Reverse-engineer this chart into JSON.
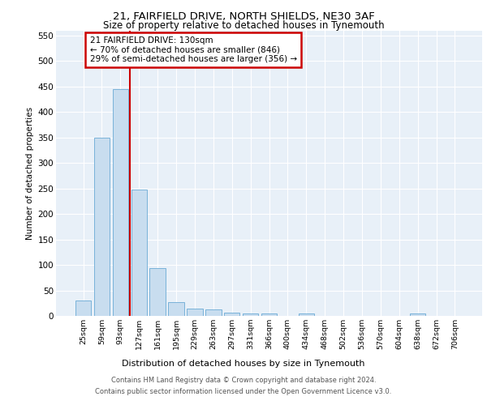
{
  "title": "21, FAIRFIELD DRIVE, NORTH SHIELDS, NE30 3AF",
  "subtitle": "Size of property relative to detached houses in Tynemouth",
  "xlabel": "Distribution of detached houses by size in Tynemouth",
  "ylabel": "Number of detached properties",
  "bar_values": [
    30,
    350,
    445,
    248,
    93,
    27,
    15,
    12,
    6,
    5,
    4,
    0,
    4,
    0,
    0,
    0,
    0,
    0,
    4,
    0,
    0
  ],
  "categories": [
    "25sqm",
    "59sqm",
    "93sqm",
    "127sqm",
    "161sqm",
    "195sqm",
    "229sqm",
    "263sqm",
    "297sqm",
    "331sqm",
    "366sqm",
    "400sqm",
    "434sqm",
    "468sqm",
    "502sqm",
    "536sqm",
    "570sqm",
    "604sqm",
    "638sqm",
    "672sqm",
    "706sqm"
  ],
  "bar_color": "#c8ddef",
  "bar_edge_color": "#6aaad4",
  "red_line_index": 3,
  "red_line_color": "#cc0000",
  "annotation_line1": "21 FAIRFIELD DRIVE: 130sqm",
  "annotation_line2": "← 70% of detached houses are smaller (846)",
  "annotation_line3": "29% of semi-detached houses are larger (356) →",
  "annotation_box_color": "#cc0000",
  "ylim": [
    0,
    560
  ],
  "yticks": [
    0,
    50,
    100,
    150,
    200,
    250,
    300,
    350,
    400,
    450,
    500,
    550
  ],
  "background_color": "#e8f0f8",
  "grid_color": "#ffffff",
  "footer_line1": "Contains HM Land Registry data © Crown copyright and database right 2024.",
  "footer_line2": "Contains public sector information licensed under the Open Government Licence v3.0."
}
